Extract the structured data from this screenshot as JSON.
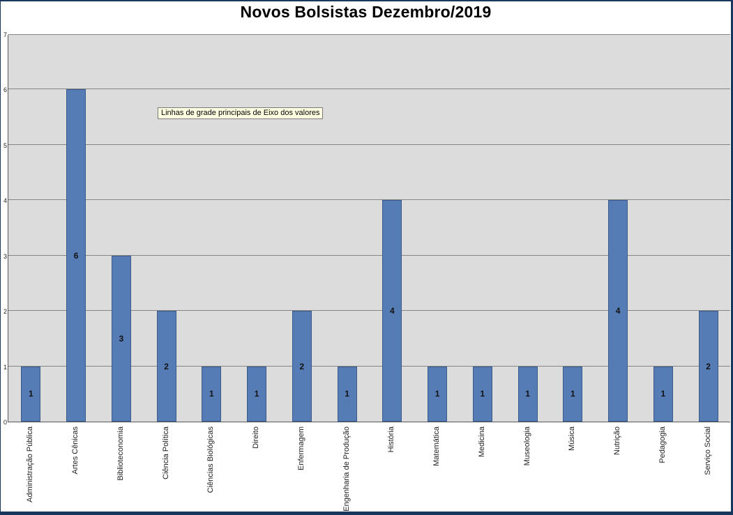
{
  "title": "Novos Bolsistas Dezembro/2019",
  "tooltip": "Linhas de grade principais de Eixo dos valores",
  "chart_data": {
    "type": "bar",
    "title": "Novos Bolsistas Dezembro/2019",
    "categories": [
      "Administração Pública",
      "Artes Cênicas",
      "Biblioteconomia",
      "Ciência Política",
      "Ciências Biológicas",
      "Direito",
      "Enfermagem",
      "Engenharia de Produção",
      "História",
      "Matemática",
      "Medicina",
      "Museologia",
      "Música",
      "Nutrição",
      "Pedagogia",
      "Serviço Social"
    ],
    "values": [
      1,
      6,
      3,
      2,
      1,
      1,
      2,
      1,
      4,
      1,
      1,
      1,
      1,
      4,
      1,
      2
    ],
    "xlabel": "",
    "ylabel": "",
    "ylim": [
      0,
      7
    ],
    "ytick_step": 1,
    "grid": true,
    "data_labels": true,
    "legend": "none",
    "bar_fill": "#567cb6",
    "bar_border": "#3a5a8c",
    "plot_bg": "#dcdcdc",
    "gridline_color": "#868686",
    "frame_color": "#17375d"
  }
}
